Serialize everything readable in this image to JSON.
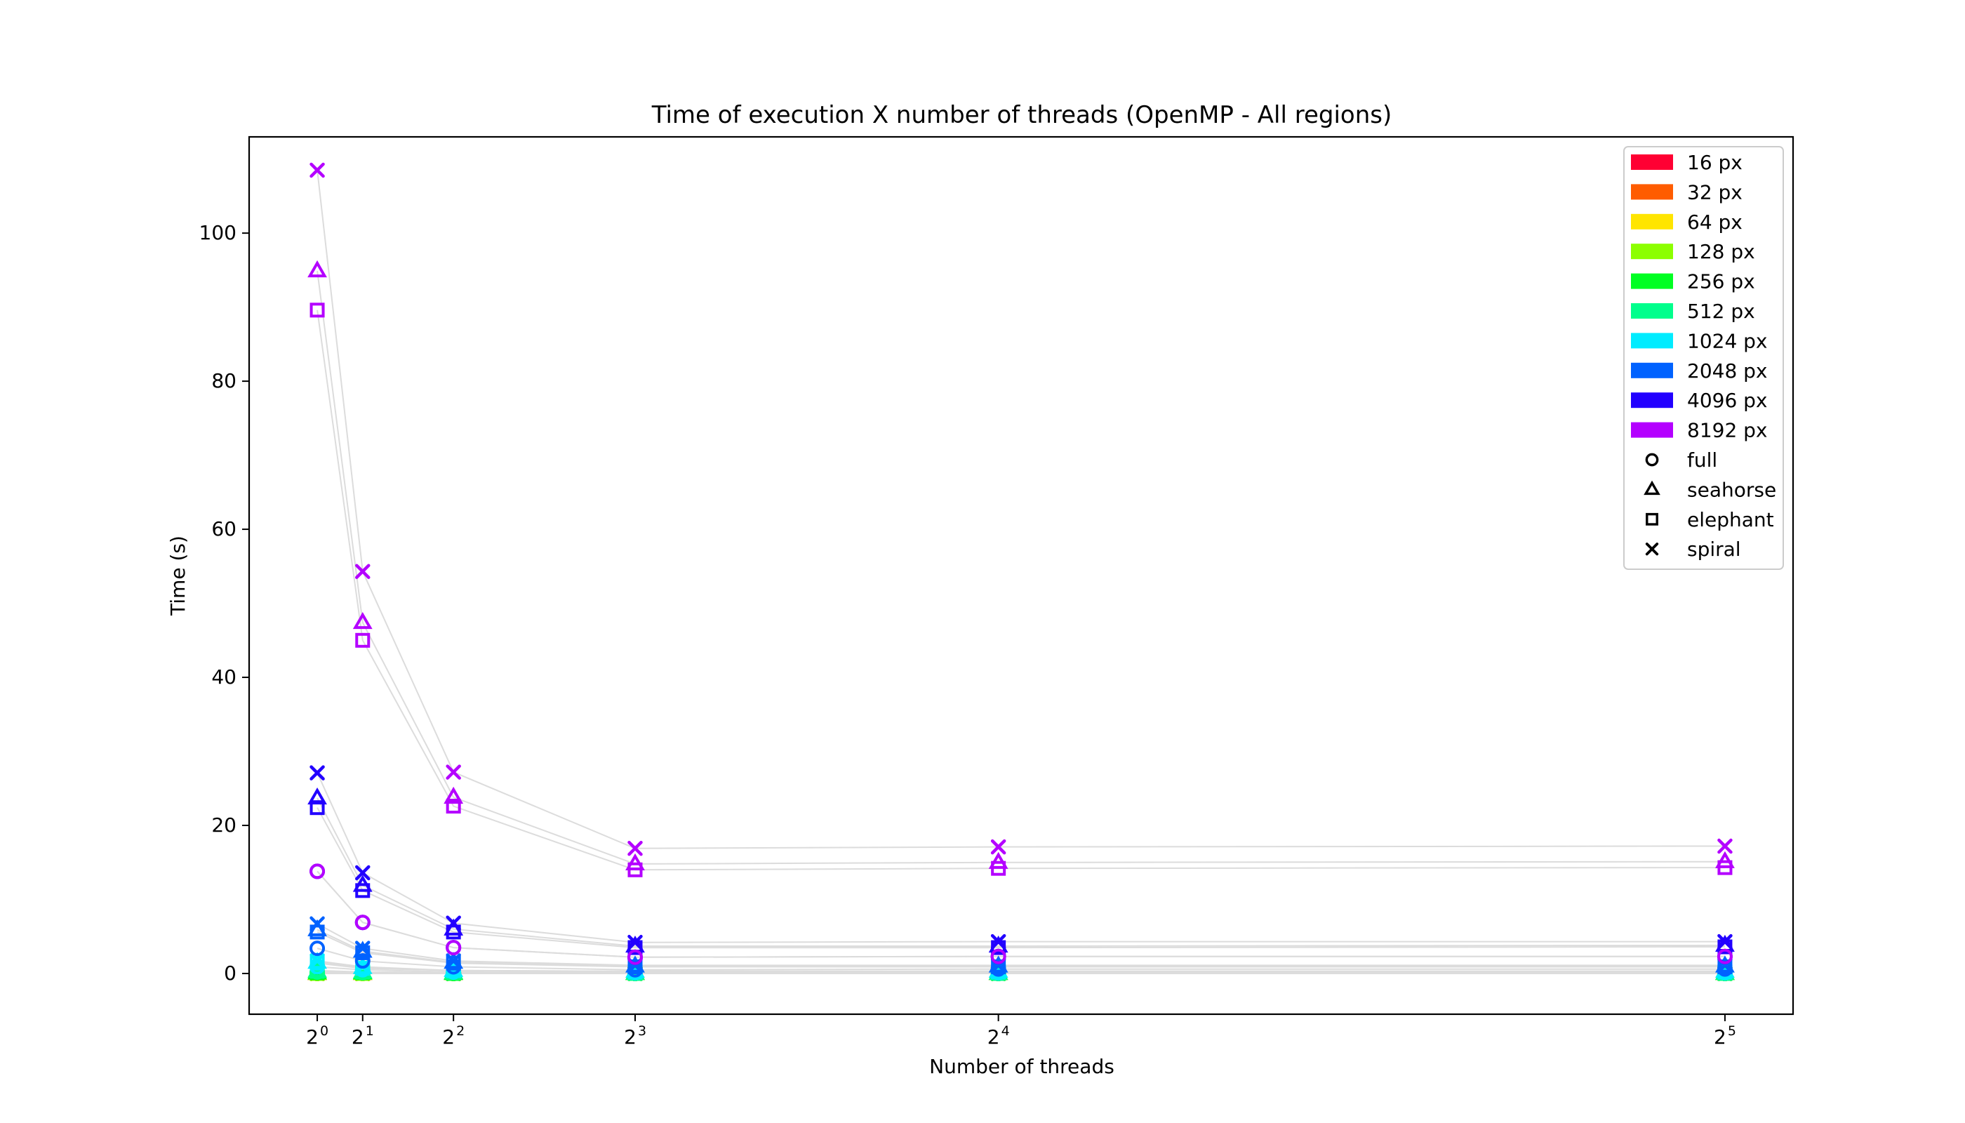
{
  "chart_data": {
    "type": "scatter",
    "title": "Time of execution X number of threads (OpenMP - All regions)",
    "xlabel": "Number of threads",
    "ylabel": "Time (s)",
    "x_scale": "linear",
    "x": [
      1,
      2,
      4,
      8,
      16,
      32
    ],
    "x_tick_base": "2",
    "x_tick_exponents": [
      "0",
      "1",
      "2",
      "3",
      "4",
      "5"
    ],
    "xlim": [
      -0.5,
      33.5
    ],
    "ylim": [
      -5.5,
      113
    ],
    "y_ticks": [
      0,
      20,
      40,
      60,
      80,
      100
    ],
    "grid": false,
    "legend_position": "top-right",
    "size_legend": [
      {
        "label": "16 px",
        "color": "#ff0033"
      },
      {
        "label": "32 px",
        "color": "#ff5c00"
      },
      {
        "label": "64 px",
        "color": "#ffe500"
      },
      {
        "label": "128 px",
        "color": "#8cff00"
      },
      {
        "label": "256 px",
        "color": "#00ff22"
      },
      {
        "label": "512 px",
        "color": "#00ff8c"
      },
      {
        "label": "1024 px",
        "color": "#00ecff"
      },
      {
        "label": "2048 px",
        "color": "#0062ff"
      },
      {
        "label": "4096 px",
        "color": "#2200ff"
      },
      {
        "label": "8192 px",
        "color": "#b400ff"
      }
    ],
    "marker_legend": [
      {
        "label": "full",
        "marker": "circle"
      },
      {
        "label": "seahorse",
        "marker": "triangle"
      },
      {
        "label": "elephant",
        "marker": "square"
      },
      {
        "label": "spiral",
        "marker": "x"
      }
    ],
    "line_color": "#dcdcdc",
    "series": [
      {
        "size": "16 px",
        "region": "full",
        "values": [
          0.0,
          0.0,
          0.0,
          0.0,
          0.0,
          0.0
        ]
      },
      {
        "size": "16 px",
        "region": "seahorse",
        "values": [
          0.0,
          0.0,
          0.0,
          0.0,
          0.0,
          0.0
        ]
      },
      {
        "size": "16 px",
        "region": "elephant",
        "values": [
          0.0,
          0.0,
          0.0,
          0.0,
          0.0,
          0.0
        ]
      },
      {
        "size": "16 px",
        "region": "spiral",
        "values": [
          0.0,
          0.0,
          0.0,
          0.0,
          0.0,
          0.0
        ]
      },
      {
        "size": "32 px",
        "region": "full",
        "values": [
          0.0,
          0.0,
          0.0,
          0.0,
          0.0,
          0.0
        ]
      },
      {
        "size": "32 px",
        "region": "seahorse",
        "values": [
          0.0,
          0.0,
          0.0,
          0.0,
          0.0,
          0.0
        ]
      },
      {
        "size": "32 px",
        "region": "elephant",
        "values": [
          0.0,
          0.0,
          0.0,
          0.0,
          0.0,
          0.0
        ]
      },
      {
        "size": "32 px",
        "region": "spiral",
        "values": [
          0.0,
          0.0,
          0.0,
          0.0,
          0.0,
          0.0
        ]
      },
      {
        "size": "64 px",
        "region": "full",
        "values": [
          0.0,
          0.0,
          0.0,
          0.0,
          0.0,
          0.0
        ]
      },
      {
        "size": "64 px",
        "region": "seahorse",
        "values": [
          0.0,
          0.0,
          0.0,
          0.0,
          0.0,
          0.0
        ]
      },
      {
        "size": "64 px",
        "region": "elephant",
        "values": [
          0.0,
          0.0,
          0.0,
          0.0,
          0.0,
          0.0
        ]
      },
      {
        "size": "64 px",
        "region": "spiral",
        "values": [
          0.0,
          0.0,
          0.0,
          0.0,
          0.0,
          0.0
        ]
      },
      {
        "size": "128 px",
        "region": "full",
        "values": [
          0.0,
          0.0,
          0.0,
          0.0,
          0.0,
          0.0
        ]
      },
      {
        "size": "128 px",
        "region": "seahorse",
        "values": [
          0.0,
          0.0,
          0.0,
          0.0,
          0.0,
          0.0
        ]
      },
      {
        "size": "128 px",
        "region": "elephant",
        "values": [
          0.0,
          0.0,
          0.0,
          0.0,
          0.0,
          0.0
        ]
      },
      {
        "size": "128 px",
        "region": "spiral",
        "values": [
          0.0,
          0.0,
          0.0,
          0.0,
          0.0,
          0.0
        ]
      },
      {
        "size": "256 px",
        "region": "full",
        "values": [
          0.1,
          0.1,
          0.0,
          0.0,
          0.0,
          0.0
        ]
      },
      {
        "size": "256 px",
        "region": "seahorse",
        "values": [
          0.1,
          0.1,
          0.0,
          0.0,
          0.0,
          0.0
        ]
      },
      {
        "size": "256 px",
        "region": "elephant",
        "values": [
          0.1,
          0.1,
          0.0,
          0.0,
          0.0,
          0.0
        ]
      },
      {
        "size": "256 px",
        "region": "spiral",
        "values": [
          0.1,
          0.1,
          0.0,
          0.0,
          0.0,
          0.0
        ]
      },
      {
        "size": "512 px",
        "region": "full",
        "values": [
          0.2,
          0.1,
          0.1,
          0.0,
          0.0,
          0.0
        ]
      },
      {
        "size": "512 px",
        "region": "seahorse",
        "values": [
          0.3,
          0.2,
          0.1,
          0.0,
          0.0,
          0.0
        ]
      },
      {
        "size": "512 px",
        "region": "elephant",
        "values": [
          0.3,
          0.2,
          0.1,
          0.0,
          0.0,
          0.0
        ]
      },
      {
        "size": "512 px",
        "region": "spiral",
        "values": [
          0.4,
          0.2,
          0.1,
          0.1,
          0.1,
          0.1
        ]
      },
      {
        "size": "1024 px",
        "region": "full",
        "values": [
          0.9,
          0.5,
          0.2,
          0.1,
          0.1,
          0.1
        ]
      },
      {
        "size": "1024 px",
        "region": "seahorse",
        "values": [
          1.5,
          0.8,
          0.4,
          0.3,
          0.3,
          0.3
        ]
      },
      {
        "size": "1024 px",
        "region": "elephant",
        "values": [
          1.4,
          0.7,
          0.4,
          0.2,
          0.2,
          0.2
        ]
      },
      {
        "size": "1024 px",
        "region": "spiral",
        "values": [
          1.7,
          0.9,
          0.4,
          0.3,
          0.3,
          0.3
        ]
      },
      {
        "size": "2048 px",
        "region": "full",
        "values": [
          3.4,
          1.7,
          0.9,
          0.5,
          0.6,
          0.6
        ]
      },
      {
        "size": "2048 px",
        "region": "seahorse",
        "values": [
          5.9,
          3.0,
          1.5,
          1.0,
          1.0,
          1.0
        ]
      },
      {
        "size": "2048 px",
        "region": "elephant",
        "values": [
          5.6,
          2.8,
          1.4,
          0.9,
          0.9,
          0.9
        ]
      },
      {
        "size": "2048 px",
        "region": "spiral",
        "values": [
          6.7,
          3.4,
          1.7,
          1.1,
          1.1,
          1.1
        ]
      },
      {
        "size": "4096 px",
        "region": "full",
        "values": [
          13.8,
          6.9,
          3.5,
          2.2,
          2.3,
          2.3
        ]
      },
      {
        "size": "4096 px",
        "region": "seahorse",
        "values": [
          23.7,
          11.9,
          6.0,
          3.7,
          3.7,
          3.8
        ]
      },
      {
        "size": "4096 px",
        "region": "elephant",
        "values": [
          22.4,
          11.2,
          5.6,
          3.5,
          3.5,
          3.6
        ]
      },
      {
        "size": "4096 px",
        "region": "spiral",
        "values": [
          27.1,
          13.6,
          6.8,
          4.2,
          4.3,
          4.3
        ]
      },
      {
        "size": "8192 px",
        "region": "full",
        "values": [
          13.8,
          6.9,
          3.5,
          2.2,
          2.3,
          2.3
        ]
      },
      {
        "size": "8192 px",
        "region": "seahorse",
        "values": [
          94.9,
          47.4,
          23.8,
          14.8,
          15.0,
          15.1
        ]
      },
      {
        "size": "8192 px",
        "region": "elephant",
        "values": [
          89.6,
          45.0,
          22.6,
          14.0,
          14.2,
          14.3
        ]
      },
      {
        "size": "8192 px",
        "region": "spiral",
        "values": [
          108.5,
          54.3,
          27.2,
          16.9,
          17.1,
          17.2
        ]
      }
    ]
  }
}
